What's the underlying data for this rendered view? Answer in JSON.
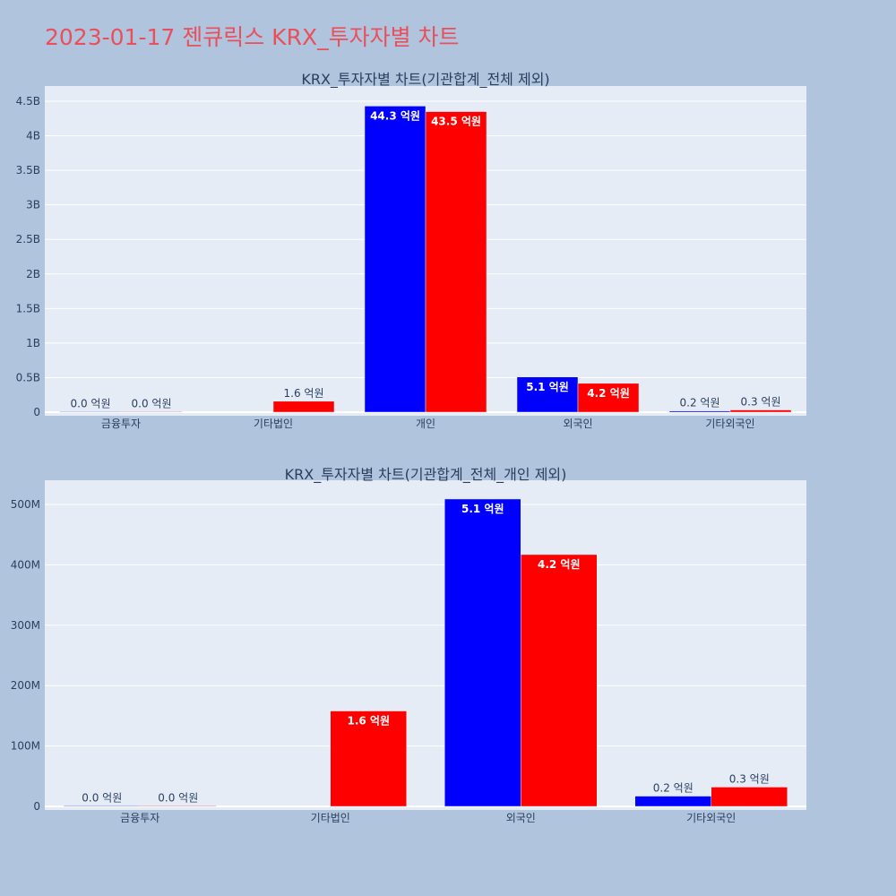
{
  "page_title": "2023-01-17 젠큐릭스 KRX_투자자별 차트",
  "colors": {
    "series_a": "#0000ff",
    "series_b": "#ff0000",
    "plot_bg": "#e5ecf6",
    "page_bg": "#b0c4de",
    "title": "#e8505b"
  },
  "chart_data": [
    {
      "type": "bar",
      "title": "KRX_투자자별 차트(기관합계_전체 제외)",
      "categories": [
        "금융투자",
        "기타법인",
        "개인",
        "외국인",
        "기타외국인"
      ],
      "ylim": [
        0,
        4500000000
      ],
      "yticks": [
        {
          "value": 0,
          "label": "0"
        },
        {
          "value": 500000000,
          "label": "0.5B"
        },
        {
          "value": 1000000000,
          "label": "1B"
        },
        {
          "value": 1500000000,
          "label": "1.5B"
        },
        {
          "value": 2000000000,
          "label": "2B"
        },
        {
          "value": 2500000000,
          "label": "2.5B"
        },
        {
          "value": 3000000000,
          "label": "3B"
        },
        {
          "value": 3500000000,
          "label": "3.5B"
        },
        {
          "value": 4000000000,
          "label": "4B"
        },
        {
          "value": 4500000000,
          "label": "4.5B"
        }
      ],
      "grid": true,
      "series": [
        {
          "color": "#0000ff",
          "values": [
            1000000,
            null,
            4430000000,
            509000000,
            17000000
          ],
          "labels": [
            "0.0 억원",
            "",
            "44.3 억원",
            "5.1 억원",
            "0.2 억원"
          ]
        },
        {
          "color": "#ff0000",
          "values": [
            1000000,
            158000000,
            4350000000,
            417000000,
            32000000
          ],
          "labels": [
            "0.0 억원",
            "1.6 억원",
            "43.5 억원",
            "4.2 억원",
            "0.3 억원"
          ]
        }
      ]
    },
    {
      "type": "bar",
      "title": "KRX_투자자별 차트(기관합계_전체_개인 제외)",
      "categories": [
        "금융투자",
        "기타법인",
        "외국인",
        "기타외국인"
      ],
      "ylim": [
        0,
        500000000
      ],
      "yticks": [
        {
          "value": 0,
          "label": "0"
        },
        {
          "value": 100000000,
          "label": "100M"
        },
        {
          "value": 200000000,
          "label": "200M"
        },
        {
          "value": 300000000,
          "label": "300M"
        },
        {
          "value": 400000000,
          "label": "400M"
        },
        {
          "value": 500000000,
          "label": "500M"
        }
      ],
      "grid": true,
      "series": [
        {
          "color": "#0000ff",
          "values": [
            1000000,
            null,
            509000000,
            17000000
          ],
          "labels": [
            "0.0 억원",
            "",
            "5.1 억원",
            "0.2 억원"
          ]
        },
        {
          "color": "#ff0000",
          "values": [
            1000000,
            158000000,
            417000000,
            32000000
          ],
          "labels": [
            "0.0 억원",
            "1.6 억원",
            "4.2 억원",
            "0.3 억원"
          ]
        }
      ]
    }
  ]
}
